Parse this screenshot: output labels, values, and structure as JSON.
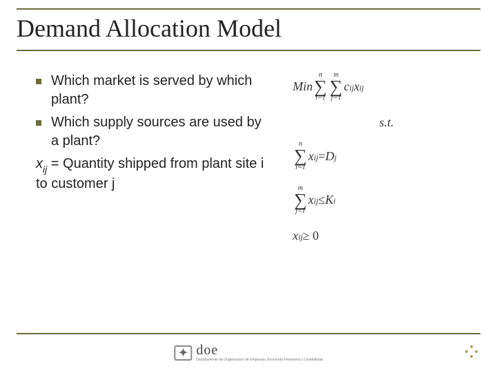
{
  "title": "Demand Allocation Model",
  "bullets": [
    "Which market is served by which plant?",
    "Which supply sources are used by a plant?"
  ],
  "definition": {
    "var": "x",
    "sub": "ij",
    "text": " = Quantity shipped from plant site i to customer j"
  },
  "equations": {
    "objective": {
      "lead": "Min",
      "sum1_ub": "n",
      "sum1_lb": "i=1",
      "sum2_ub": "m",
      "sum2_lb": "j=1",
      "term_c": "c",
      "term_c_sub": "ij",
      "term_x": "x",
      "term_x_sub": "ij"
    },
    "subject_to": "s.t.",
    "c1": {
      "sum_ub": "n",
      "sum_lb": "i=1",
      "lhs_var": "x",
      "lhs_sub": "ij",
      "rel": " = ",
      "rhs_var": "D",
      "rhs_sub": "j"
    },
    "c2": {
      "sum_ub": "m",
      "sum_lb": "j=1",
      "lhs_var": "x",
      "lhs_sub": "ij",
      "rel": " ≤ ",
      "rhs_var": "K",
      "rhs_sub": "i"
    },
    "c3": {
      "var": "x",
      "sub": "ij",
      "rel": " ≥ 0"
    }
  },
  "footer": {
    "logo_text": "doe",
    "logo_sub": "Departamento de Organización de Empresas, Economía Financiera y Contabilidad"
  },
  "colors": {
    "rule": "#6b6b3a",
    "text": "#222222",
    "background": "#ffffff"
  }
}
